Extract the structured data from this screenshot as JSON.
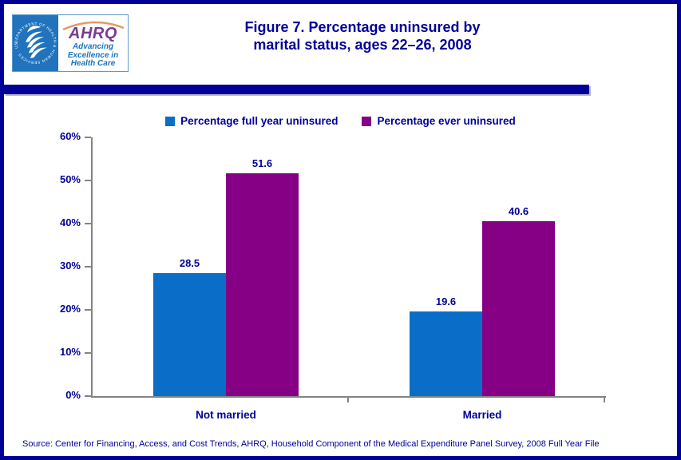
{
  "header": {
    "logo": {
      "seal_text": "DEPARTMENT OF HEALTH & HUMAN SERVICES · USA",
      "acronym": "AHRQ",
      "tagline_line1": "Advancing",
      "tagline_line2": "Excellence in",
      "tagline_line3": "Health Care"
    },
    "title_line1": "Figure 7. Percentage uninsured by",
    "title_line2": "marital status, ages 22–26, 2008"
  },
  "chart_data": {
    "type": "bar",
    "title": "Figure 7. Percentage uninsured by marital status, ages 22–26, 2008",
    "categories": [
      "Not married",
      "Married"
    ],
    "series": [
      {
        "name": "Percentage full year uninsured",
        "color": "#0a6ec8",
        "values": [
          28.5,
          19.6
        ]
      },
      {
        "name": "Percentage ever uninsured",
        "color": "#860086",
        "values": [
          51.6,
          40.6
        ]
      }
    ],
    "xlabel": "",
    "ylabel": "",
    "ylim": [
      0,
      60
    ],
    "ytick_step": 10,
    "ytick_labels": [
      "0%",
      "10%",
      "20%",
      "30%",
      "40%",
      "50%",
      "60%"
    ],
    "grid": false,
    "legend_position": "top",
    "value_labels": true
  },
  "source": "Source: Center for Financing, Access, and Cost Trends, AHRQ, Household Component of the Medical Expenditure Panel Survey, 2008 Full Year File",
  "colors": {
    "frame": "#000099",
    "text": "#000099",
    "axis": "#848484",
    "bar_blue": "#0a6ec8",
    "bar_purple": "#860086",
    "seal_blue": "#2073bc",
    "ahrq_purple": "#7b3a97",
    "ahrq_blue": "#1b75bc",
    "arc_orange": "#e09a6a"
  }
}
